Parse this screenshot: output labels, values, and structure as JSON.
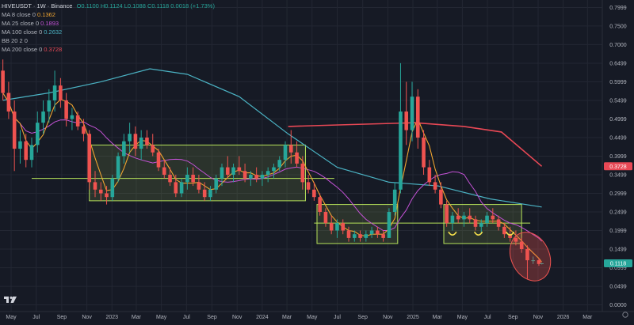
{
  "header": {
    "symbol": "HIVEUSDT · 1W · Binance",
    "ohlc": "O0.1100 H0.1124 L0.1088 C0.1118 0.0018 (+1.73%)",
    "indicators": [
      {
        "label": "MA 8 close 0",
        "value": "0.1362",
        "color": "#f0a530"
      },
      {
        "label": "MA 25 close 0",
        "value": "0.1893",
        "color": "#c452d6"
      },
      {
        "label": "MA 100 close 0",
        "value": "0.2632",
        "color": "#4bb3c4"
      },
      {
        "label": "BB 20 2 0",
        "value": "",
        "color": "#9598a1"
      },
      {
        "label": "MA 200 close 0",
        "value": "0.3728",
        "color": "#e84855"
      }
    ]
  },
  "colors": {
    "background": "#161a25",
    "grid": "#232733",
    "up": "#26a69a",
    "down": "#ef5350",
    "box": "#b6e35a",
    "ma8": "#f0a530",
    "ma25": "#c452d6",
    "ma100": "#4bb3c4",
    "ma200": "#e84855"
  },
  "chart_data": {
    "type": "candlestick",
    "y_axis": {
      "ticks": [
        "0.7999",
        "0.7500",
        "0.7000",
        "0.6499",
        "0.5999",
        "0.5499",
        "0.4999",
        "0.4499",
        "0.3999",
        "0.3499",
        "0.2999",
        "0.2499",
        "0.1999",
        "0.1499",
        "0.0999",
        "0.0499",
        "0.0000"
      ],
      "range": [
        -0.018,
        0.82
      ]
    },
    "x_axis": {
      "labels": [
        "May",
        "Jul",
        "Sep",
        "Nov",
        "2023",
        "Mar",
        "May",
        "Jul",
        "Sep",
        "Nov",
        "2024",
        "Mar",
        "May",
        "Jul",
        "Sep",
        "Nov",
        "2025",
        "Mar",
        "May",
        "Jul",
        "Sep",
        "Nov",
        "2026",
        "Mar"
      ],
      "start": "2022-04-04",
      "end": "2026-04-06"
    },
    "price_labels": [
      {
        "value": 0.3728,
        "text": "0.3728",
        "color": "#e84855"
      },
      {
        "value": 0.1118,
        "text": "0.1118",
        "color": "#26a69a"
      }
    ],
    "candles": [
      {
        "t": "2022-04-11",
        "o": 0.63,
        "h": 0.66,
        "l": 0.55,
        "c": 0.57
      },
      {
        "t": "2022-04-25",
        "o": 0.57,
        "h": 0.6,
        "l": 0.5,
        "c": 0.52
      },
      {
        "t": "2022-05-09",
        "o": 0.52,
        "h": 0.55,
        "l": 0.36,
        "c": 0.42
      },
      {
        "t": "2022-05-23",
        "o": 0.42,
        "h": 0.47,
        "l": 0.38,
        "c": 0.44
      },
      {
        "t": "2022-06-06",
        "o": 0.44,
        "h": 0.46,
        "l": 0.37,
        "c": 0.39
      },
      {
        "t": "2022-06-20",
        "o": 0.39,
        "h": 0.45,
        "l": 0.37,
        "c": 0.43
      },
      {
        "t": "2022-07-04",
        "o": 0.43,
        "h": 0.52,
        "l": 0.41,
        "c": 0.49
      },
      {
        "t": "2022-07-18",
        "o": 0.49,
        "h": 0.55,
        "l": 0.46,
        "c": 0.52
      },
      {
        "t": "2022-08-01",
        "o": 0.52,
        "h": 0.58,
        "l": 0.49,
        "c": 0.55
      },
      {
        "t": "2022-08-15",
        "o": 0.55,
        "h": 0.63,
        "l": 0.52,
        "c": 0.59
      },
      {
        "t": "2022-08-29",
        "o": 0.59,
        "h": 0.61,
        "l": 0.53,
        "c": 0.55
      },
      {
        "t": "2022-09-12",
        "o": 0.55,
        "h": 0.57,
        "l": 0.48,
        "c": 0.5
      },
      {
        "t": "2022-09-26",
        "o": 0.5,
        "h": 0.53,
        "l": 0.47,
        "c": 0.51
      },
      {
        "t": "2022-10-10",
        "o": 0.51,
        "h": 0.52,
        "l": 0.47,
        "c": 0.48
      },
      {
        "t": "2022-10-24",
        "o": 0.48,
        "h": 0.5,
        "l": 0.44,
        "c": 0.46
      },
      {
        "t": "2022-11-07",
        "o": 0.46,
        "h": 0.47,
        "l": 0.31,
        "c": 0.33
      },
      {
        "t": "2022-11-21",
        "o": 0.33,
        "h": 0.36,
        "l": 0.29,
        "c": 0.31
      },
      {
        "t": "2022-12-05",
        "o": 0.31,
        "h": 0.33,
        "l": 0.28,
        "c": 0.3
      },
      {
        "t": "2022-12-19",
        "o": 0.3,
        "h": 0.32,
        "l": 0.27,
        "c": 0.29
      },
      {
        "t": "2023-01-02",
        "o": 0.29,
        "h": 0.35,
        "l": 0.28,
        "c": 0.34
      },
      {
        "t": "2023-01-16",
        "o": 0.34,
        "h": 0.41,
        "l": 0.33,
        "c": 0.4
      },
      {
        "t": "2023-01-30",
        "o": 0.4,
        "h": 0.46,
        "l": 0.38,
        "c": 0.44
      },
      {
        "t": "2023-02-13",
        "o": 0.44,
        "h": 0.49,
        "l": 0.41,
        "c": 0.46
      },
      {
        "t": "2023-02-27",
        "o": 0.46,
        "h": 0.48,
        "l": 0.4,
        "c": 0.42
      },
      {
        "t": "2023-03-13",
        "o": 0.42,
        "h": 0.47,
        "l": 0.39,
        "c": 0.45
      },
      {
        "t": "2023-03-27",
        "o": 0.45,
        "h": 0.47,
        "l": 0.42,
        "c": 0.43
      },
      {
        "t": "2023-04-10",
        "o": 0.43,
        "h": 0.46,
        "l": 0.4,
        "c": 0.41
      },
      {
        "t": "2023-04-24",
        "o": 0.41,
        "h": 0.42,
        "l": 0.36,
        "c": 0.37
      },
      {
        "t": "2023-05-08",
        "o": 0.37,
        "h": 0.39,
        "l": 0.34,
        "c": 0.35
      },
      {
        "t": "2023-05-22",
        "o": 0.35,
        "h": 0.37,
        "l": 0.32,
        "c": 0.33
      },
      {
        "t": "2023-06-05",
        "o": 0.33,
        "h": 0.35,
        "l": 0.29,
        "c": 0.3
      },
      {
        "t": "2023-06-19",
        "o": 0.3,
        "h": 0.34,
        "l": 0.29,
        "c": 0.33
      },
      {
        "t": "2023-07-03",
        "o": 0.33,
        "h": 0.37,
        "l": 0.31,
        "c": 0.35
      },
      {
        "t": "2023-07-17",
        "o": 0.35,
        "h": 0.37,
        "l": 0.32,
        "c": 0.33
      },
      {
        "t": "2023-07-31",
        "o": 0.33,
        "h": 0.35,
        "l": 0.3,
        "c": 0.31
      },
      {
        "t": "2023-08-14",
        "o": 0.31,
        "h": 0.33,
        "l": 0.28,
        "c": 0.29
      },
      {
        "t": "2023-08-28",
        "o": 0.29,
        "h": 0.32,
        "l": 0.28,
        "c": 0.31
      },
      {
        "t": "2023-09-11",
        "o": 0.31,
        "h": 0.35,
        "l": 0.3,
        "c": 0.34
      },
      {
        "t": "2023-09-25",
        "o": 0.34,
        "h": 0.38,
        "l": 0.32,
        "c": 0.37
      },
      {
        "t": "2023-10-09",
        "o": 0.37,
        "h": 0.4,
        "l": 0.34,
        "c": 0.35
      },
      {
        "t": "2023-10-23",
        "o": 0.35,
        "h": 0.38,
        "l": 0.33,
        "c": 0.37
      },
      {
        "t": "2023-11-06",
        "o": 0.37,
        "h": 0.4,
        "l": 0.35,
        "c": 0.36
      },
      {
        "t": "2023-11-20",
        "o": 0.36,
        "h": 0.38,
        "l": 0.33,
        "c": 0.34
      },
      {
        "t": "2023-12-04",
        "o": 0.34,
        "h": 0.36,
        "l": 0.32,
        "c": 0.35
      },
      {
        "t": "2023-12-18",
        "o": 0.35,
        "h": 0.37,
        "l": 0.33,
        "c": 0.34
      },
      {
        "t": "2024-01-01",
        "o": 0.34,
        "h": 0.36,
        "l": 0.32,
        "c": 0.35
      },
      {
        "t": "2024-01-15",
        "o": 0.35,
        "h": 0.37,
        "l": 0.33,
        "c": 0.36
      },
      {
        "t": "2024-01-29",
        "o": 0.36,
        "h": 0.38,
        "l": 0.34,
        "c": 0.37
      },
      {
        "t": "2024-02-12",
        "o": 0.37,
        "h": 0.4,
        "l": 0.36,
        "c": 0.39
      },
      {
        "t": "2024-02-26",
        "o": 0.39,
        "h": 0.44,
        "l": 0.37,
        "c": 0.43
      },
      {
        "t": "2024-03-11",
        "o": 0.43,
        "h": 0.47,
        "l": 0.38,
        "c": 0.41
      },
      {
        "t": "2024-03-25",
        "o": 0.41,
        "h": 0.44,
        "l": 0.37,
        "c": 0.38
      },
      {
        "t": "2024-04-08",
        "o": 0.38,
        "h": 0.4,
        "l": 0.31,
        "c": 0.33
      },
      {
        "t": "2024-04-22",
        "o": 0.33,
        "h": 0.35,
        "l": 0.3,
        "c": 0.31
      },
      {
        "t": "2024-05-06",
        "o": 0.31,
        "h": 0.33,
        "l": 0.28,
        "c": 0.29
      },
      {
        "t": "2024-05-20",
        "o": 0.29,
        "h": 0.3,
        "l": 0.24,
        "c": 0.25
      },
      {
        "t": "2024-06-03",
        "o": 0.25,
        "h": 0.26,
        "l": 0.21,
        "c": 0.22
      },
      {
        "t": "2024-06-17",
        "o": 0.22,
        "h": 0.24,
        "l": 0.19,
        "c": 0.2
      },
      {
        "t": "2024-07-01",
        "o": 0.2,
        "h": 0.23,
        "l": 0.18,
        "c": 0.22
      },
      {
        "t": "2024-07-15",
        "o": 0.22,
        "h": 0.23,
        "l": 0.19,
        "c": 0.2
      },
      {
        "t": "2024-07-29",
        "o": 0.2,
        "h": 0.21,
        "l": 0.17,
        "c": 0.18
      },
      {
        "t": "2024-08-12",
        "o": 0.18,
        "h": 0.2,
        "l": 0.17,
        "c": 0.19
      },
      {
        "t": "2024-08-26",
        "o": 0.19,
        "h": 0.2,
        "l": 0.17,
        "c": 0.18
      },
      {
        "t": "2024-09-09",
        "o": 0.18,
        "h": 0.2,
        "l": 0.17,
        "c": 0.19
      },
      {
        "t": "2024-09-23",
        "o": 0.19,
        "h": 0.21,
        "l": 0.18,
        "c": 0.2
      },
      {
        "t": "2024-10-07",
        "o": 0.2,
        "h": 0.21,
        "l": 0.18,
        "c": 0.19
      },
      {
        "t": "2024-10-21",
        "o": 0.19,
        "h": 0.2,
        "l": 0.17,
        "c": 0.18
      },
      {
        "t": "2024-11-04",
        "o": 0.18,
        "h": 0.26,
        "l": 0.18,
        "c": 0.25
      },
      {
        "t": "2024-11-18",
        "o": 0.25,
        "h": 0.33,
        "l": 0.24,
        "c": 0.31
      },
      {
        "t": "2024-12-02",
        "o": 0.31,
        "h": 0.65,
        "l": 0.3,
        "c": 0.52
      },
      {
        "t": "2024-12-16",
        "o": 0.52,
        "h": 0.6,
        "l": 0.43,
        "c": 0.47
      },
      {
        "t": "2024-12-30",
        "o": 0.47,
        "h": 0.6,
        "l": 0.44,
        "c": 0.56
      },
      {
        "t": "2025-01-13",
        "o": 0.56,
        "h": 0.58,
        "l": 0.42,
        "c": 0.45
      },
      {
        "t": "2025-01-27",
        "o": 0.45,
        "h": 0.47,
        "l": 0.35,
        "c": 0.37
      },
      {
        "t": "2025-02-10",
        "o": 0.37,
        "h": 0.39,
        "l": 0.32,
        "c": 0.33
      },
      {
        "t": "2025-02-24",
        "o": 0.33,
        "h": 0.35,
        "l": 0.3,
        "c": 0.31
      },
      {
        "t": "2025-03-10",
        "o": 0.31,
        "h": 0.33,
        "l": 0.26,
        "c": 0.27
      },
      {
        "t": "2025-03-24",
        "o": 0.27,
        "h": 0.28,
        "l": 0.21,
        "c": 0.22
      },
      {
        "t": "2025-04-07",
        "o": 0.22,
        "h": 0.25,
        "l": 0.2,
        "c": 0.24
      },
      {
        "t": "2025-04-21",
        "o": 0.24,
        "h": 0.26,
        "l": 0.22,
        "c": 0.23
      },
      {
        "t": "2025-05-05",
        "o": 0.23,
        "h": 0.25,
        "l": 0.21,
        "c": 0.24
      },
      {
        "t": "2025-05-19",
        "o": 0.24,
        "h": 0.26,
        "l": 0.22,
        "c": 0.23
      },
      {
        "t": "2025-06-02",
        "o": 0.23,
        "h": 0.24,
        "l": 0.2,
        "c": 0.21
      },
      {
        "t": "2025-06-16",
        "o": 0.21,
        "h": 0.23,
        "l": 0.19,
        "c": 0.22
      },
      {
        "t": "2025-06-30",
        "o": 0.22,
        "h": 0.25,
        "l": 0.21,
        "c": 0.24
      },
      {
        "t": "2025-07-14",
        "o": 0.24,
        "h": 0.26,
        "l": 0.22,
        "c": 0.23
      },
      {
        "t": "2025-07-28",
        "o": 0.23,
        "h": 0.24,
        "l": 0.2,
        "c": 0.21
      },
      {
        "t": "2025-08-11",
        "o": 0.21,
        "h": 0.22,
        "l": 0.18,
        "c": 0.19
      },
      {
        "t": "2025-08-25",
        "o": 0.19,
        "h": 0.21,
        "l": 0.17,
        "c": 0.18
      },
      {
        "t": "2025-09-08",
        "o": 0.18,
        "h": 0.2,
        "l": 0.16,
        "c": 0.17
      },
      {
        "t": "2025-09-22",
        "o": 0.17,
        "h": 0.18,
        "l": 0.14,
        "c": 0.15
      },
      {
        "t": "2025-10-06",
        "o": 0.15,
        "h": 0.16,
        "l": 0.07,
        "c": 0.12
      },
      {
        "t": "2025-10-20",
        "o": 0.12,
        "h": 0.13,
        "l": 0.11,
        "c": 0.12
      },
      {
        "t": "2025-11-03",
        "o": 0.12,
        "h": 0.125,
        "l": 0.105,
        "c": 0.11
      },
      {
        "t": "2025-11-10",
        "o": 0.11,
        "h": 0.1124,
        "l": 0.1088,
        "c": 0.1118
      }
    ],
    "ma100": [
      {
        "t": "2022-04-11",
        "v": 0.55
      },
      {
        "t": "2022-08-01",
        "v": 0.57
      },
      {
        "t": "2022-12-05",
        "v": 0.6
      },
      {
        "t": "2023-04-03",
        "v": 0.635
      },
      {
        "t": "2023-07-03",
        "v": 0.62
      },
      {
        "t": "2023-11-06",
        "v": 0.56
      },
      {
        "t": "2024-03-04",
        "v": 0.46
      },
      {
        "t": "2024-07-01",
        "v": 0.37
      },
      {
        "t": "2024-11-04",
        "v": 0.33
      },
      {
        "t": "2025-03-03",
        "v": 0.32
      },
      {
        "t": "2025-07-07",
        "v": 0.285
      },
      {
        "t": "2025-11-10",
        "v": 0.2632
      }
    ],
    "ma200": [
      {
        "t": "2024-03-04",
        "v": 0.48
      },
      {
        "t": "2024-08-05",
        "v": 0.485
      },
      {
        "t": "2025-01-06",
        "v": 0.49
      },
      {
        "t": "2025-05-05",
        "v": 0.48
      },
      {
        "t": "2025-08-04",
        "v": 0.465
      },
      {
        "t": "2025-11-10",
        "v": 0.3728
      }
    ],
    "boxes": [
      {
        "t1": "2022-11-07",
        "t2": "2024-04-15",
        "top": 0.43,
        "bottom": 0.28
      },
      {
        "t1": "2024-05-13",
        "t2": "2024-11-25",
        "top": 0.27,
        "bottom": 0.165
      },
      {
        "t1": "2025-03-17",
        "t2": "2025-09-22",
        "top": 0.27,
        "bottom": 0.165
      }
    ],
    "hlines": [
      {
        "t1": "2022-06-20",
        "t2": "2024-06-24",
        "v": 0.34
      },
      {
        "t1": "2024-05-06",
        "t2": "2025-10-13",
        "v": 0.22
      }
    ],
    "markers": [
      {
        "t": "2025-04-07",
        "v": 0.19,
        "type": "smile"
      },
      {
        "t": "2025-06-09",
        "v": 0.19,
        "type": "smile"
      },
      {
        "t": "2025-08-25",
        "v": 0.19,
        "type": "smile"
      }
    ],
    "highlight": {
      "t": "2025-10-13",
      "v": 0.13,
      "type": "ellipse"
    }
  }
}
